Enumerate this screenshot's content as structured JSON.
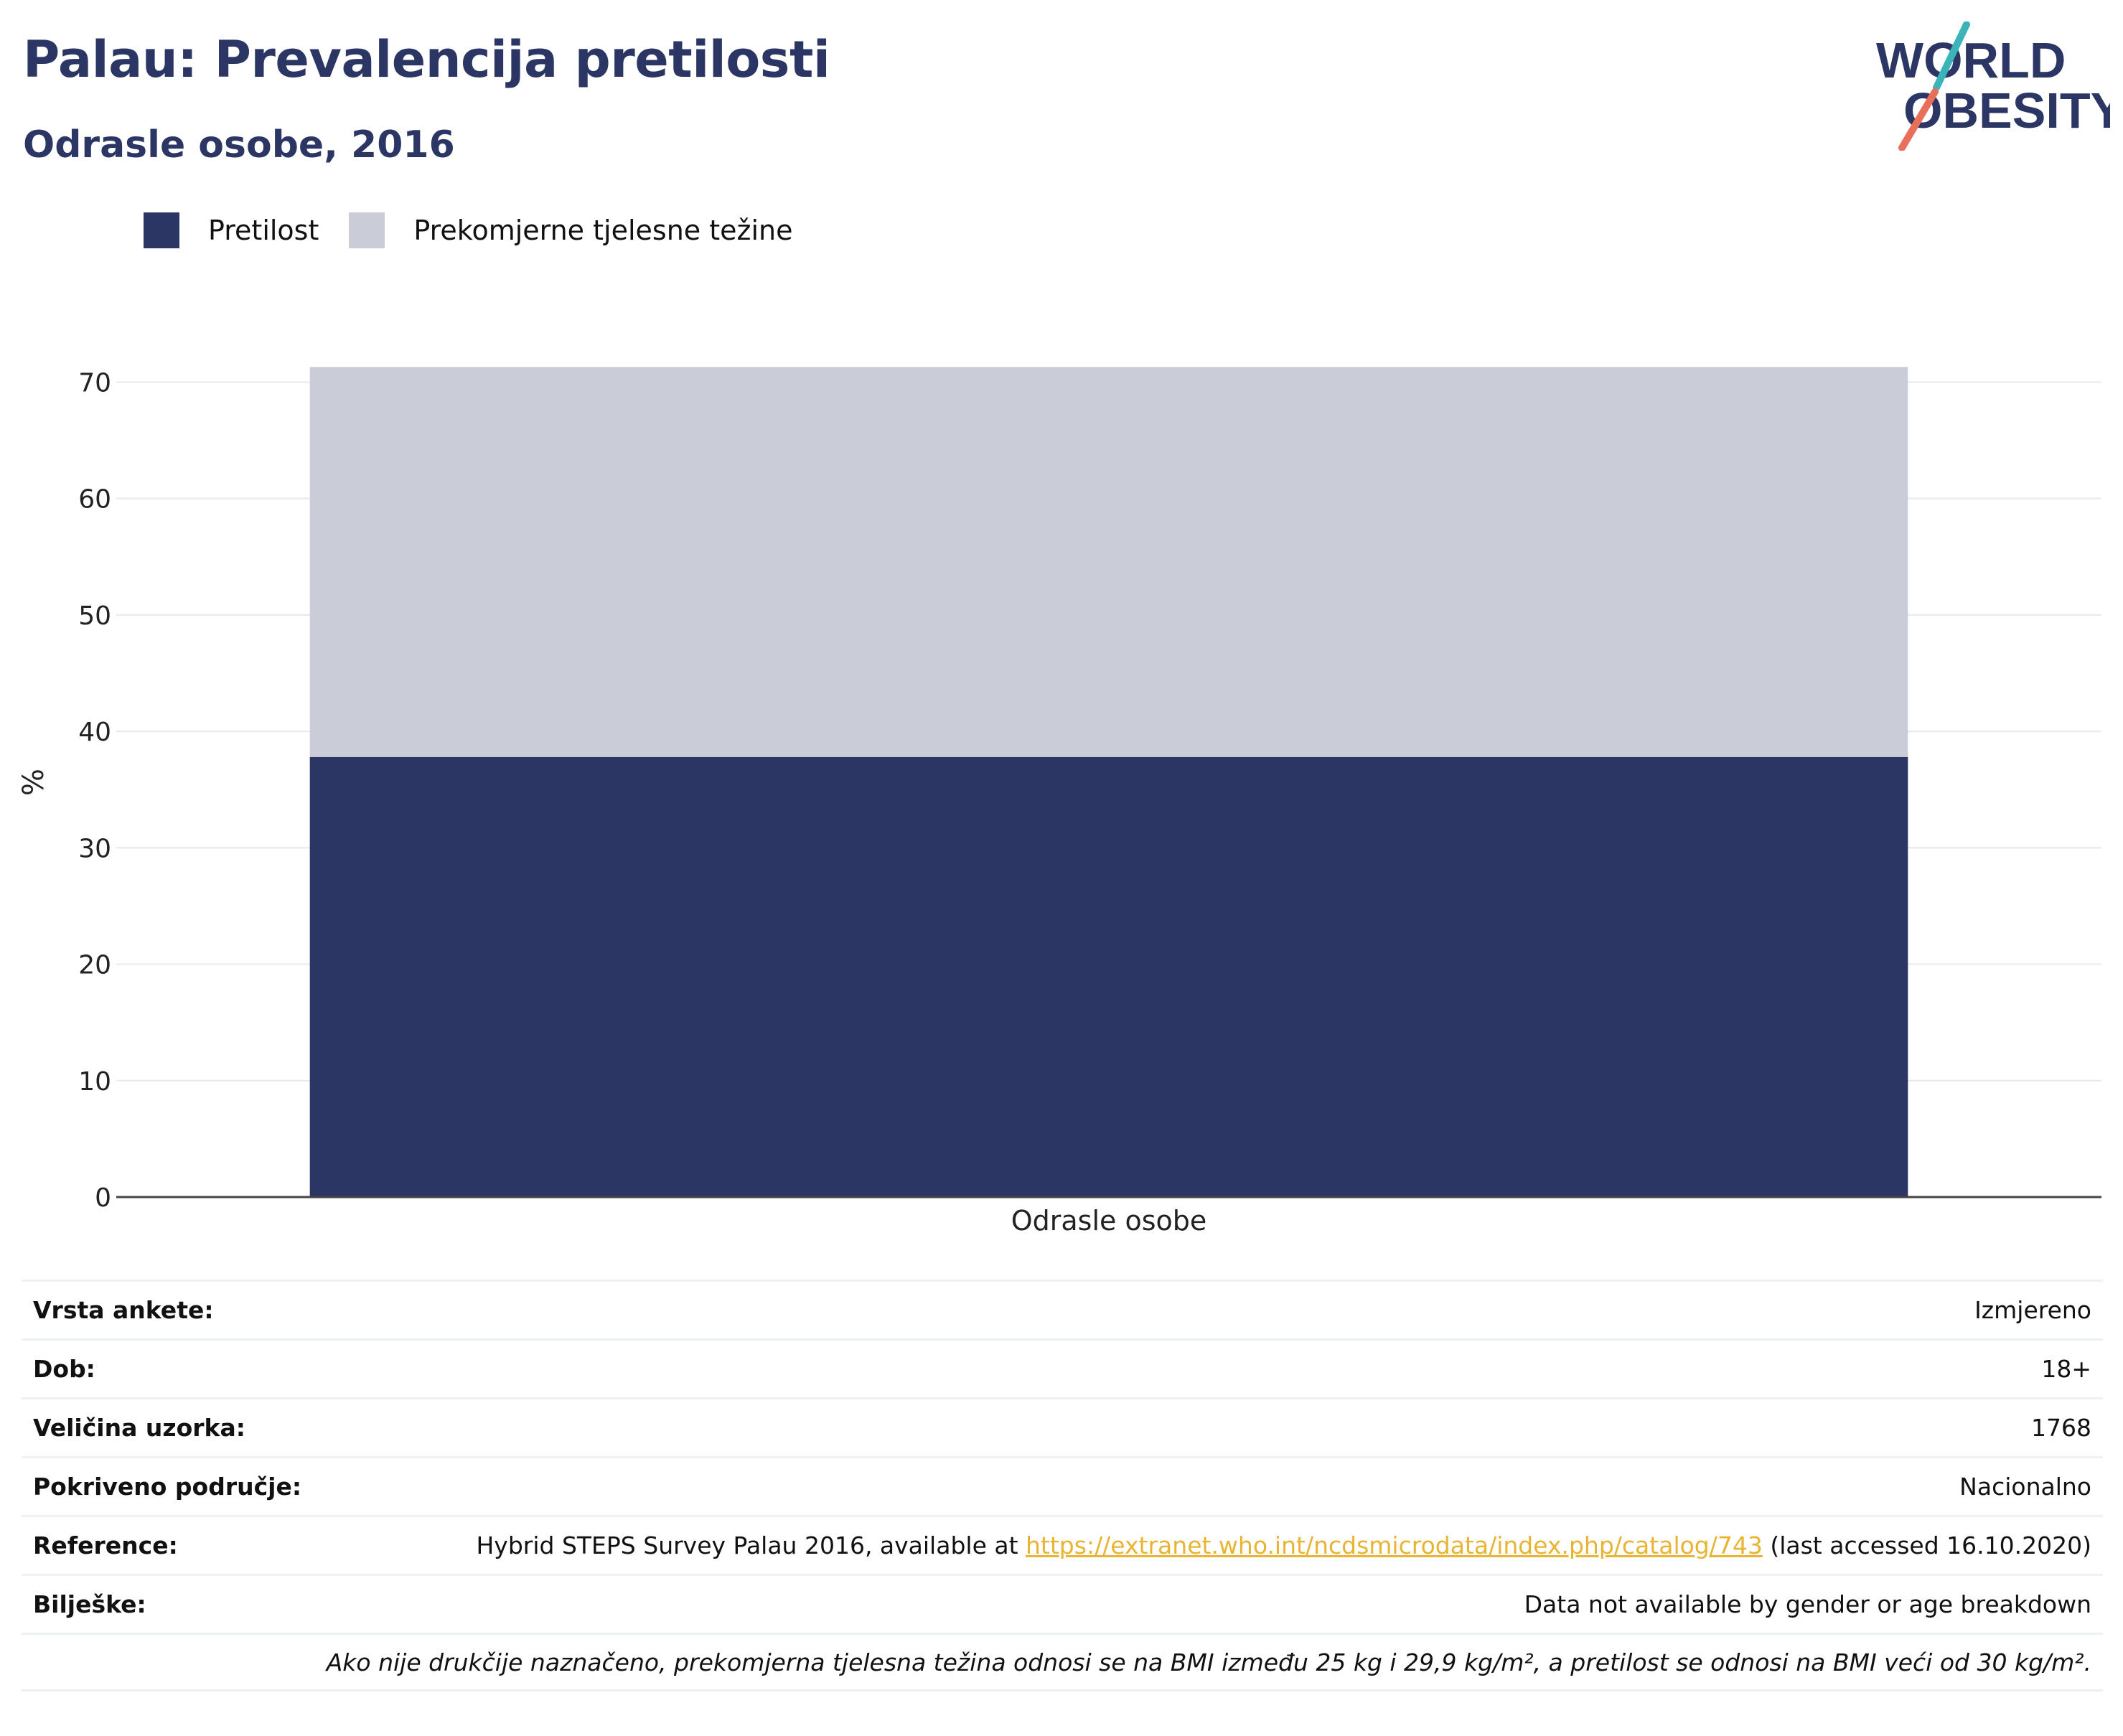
{
  "header": {
    "title": "Palau: Prevalencija pretilosti",
    "subtitle": "Odrasle osobe, 2016"
  },
  "logo": {
    "line1": "WORLD",
    "line2": "OBESITY"
  },
  "colors": {
    "obesity": "#2b3664",
    "overweight": "#cacdd8",
    "title": "#2b3664",
    "link": "#e8b431",
    "logo_teal": "#3bb3b8",
    "logo_red": "#e8705a"
  },
  "chart_data": {
    "type": "bar",
    "stacked": true,
    "categories": [
      "Odrasle osobe"
    ],
    "series": [
      {
        "name": "Pretilost",
        "values": [
          37.8
        ]
      },
      {
        "name": "Prekomjerne tjelesne težine",
        "values": [
          33.5
        ]
      }
    ],
    "ylabel": "%",
    "xlabel": "",
    "ylim": [
      0,
      72
    ],
    "yticks": [
      0,
      10,
      20,
      30,
      40,
      50,
      60,
      70
    ],
    "grid": true,
    "legend_position": "top-left"
  },
  "info": [
    {
      "label": "Vrsta ankete:",
      "value": "Izmjereno"
    },
    {
      "label": "Dob:",
      "value": "18+"
    },
    {
      "label": "Veličina uzorka:",
      "value": "1768"
    },
    {
      "label": "Pokriveno područje:",
      "value": "Nacionalno"
    },
    {
      "label": "Reference:",
      "value_prefix": "Hybrid STEPS Survey Palau 2016, available at ",
      "link": "https://extranet.who.int/ncdsmicrodata/index.php/catalog/743",
      "value_suffix": " (last accessed 16.10.2020)"
    },
    {
      "label": "Bilješke:",
      "value": "Data not available by gender or age breakdown"
    }
  ],
  "footnote": "Ako nije drukčije naznačeno, prekomjerna tjelesna težina odnosi se na BMI između 25 kg i 29,9 kg/m², a pretilost se odnosi na BMI veći od 30 kg/m²."
}
